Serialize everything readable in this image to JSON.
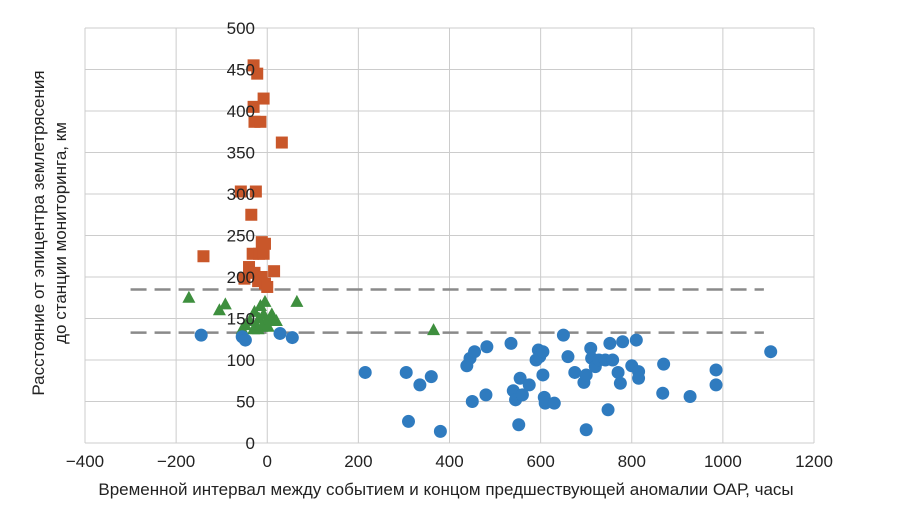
{
  "chart_data": {
    "type": "scatter",
    "xlabel": "Временной интервал между событием и концом предшествующей аномалии ОАР, часы",
    "ylabel_line1": "Расстояние от эпицентра землетрясения",
    "ylabel_line2": "до станции мониторинга, км",
    "xlim": [
      -400,
      1200
    ],
    "ylim": [
      0,
      500
    ],
    "xticks": [
      -400,
      -200,
      0,
      200,
      400,
      600,
      800,
      1000,
      1200
    ],
    "xtick_labels": [
      "−400",
      "−200",
      "0",
      "200",
      "400",
      "600",
      "800",
      "1000",
      "1200"
    ],
    "yticks": [
      0,
      50,
      100,
      150,
      200,
      250,
      300,
      350,
      400,
      450,
      500
    ],
    "ytick_labels": [
      "0",
      "50",
      "100",
      "150",
      "200",
      "250",
      "300",
      "350",
      "400",
      "450",
      "500"
    ],
    "grid": true,
    "colors": {
      "circle": "#2f7bbf",
      "square": "#c9572a",
      "triangle": "#3e8f3e",
      "line": "#8a8a8a",
      "grid": "#cccccc"
    },
    "threshold_lines": [
      {
        "y": 185,
        "x_range": [
          -300,
          1090
        ]
      },
      {
        "y": 133,
        "x_range": [
          -300,
          1090
        ]
      }
    ],
    "series": [
      {
        "marker": "square",
        "points": [
          [
            -30,
            455
          ],
          [
            -22,
            445
          ],
          [
            -8,
            415
          ],
          [
            -30,
            405
          ],
          [
            -28,
            387
          ],
          [
            -15,
            387
          ],
          [
            32,
            362
          ],
          [
            -58,
            303
          ],
          [
            -25,
            303
          ],
          [
            -35,
            275
          ],
          [
            -12,
            242
          ],
          [
            -5,
            240
          ],
          [
            -32,
            228
          ],
          [
            -18,
            228
          ],
          [
            -140,
            225
          ],
          [
            -8,
            228
          ],
          [
            -40,
            212
          ],
          [
            15,
            207
          ],
          [
            -28,
            205
          ],
          [
            -12,
            200
          ],
          [
            -50,
            198
          ],
          [
            -20,
            195
          ],
          [
            -5,
            192
          ],
          [
            0,
            188
          ]
        ]
      },
      {
        "marker": "triangle",
        "points": [
          [
            -172,
            175
          ],
          [
            -92,
            167
          ],
          [
            -105,
            160
          ],
          [
            -5,
            170
          ],
          [
            -15,
            165
          ],
          [
            65,
            170
          ],
          [
            -28,
            158
          ],
          [
            -8,
            155
          ],
          [
            10,
            155
          ],
          [
            -18,
            150
          ],
          [
            5,
            150
          ],
          [
            -38,
            147
          ],
          [
            -2,
            147
          ],
          [
            20,
            147
          ],
          [
            -48,
            142
          ],
          [
            -25,
            142
          ],
          [
            -12,
            140
          ],
          [
            2,
            140
          ],
          [
            -55,
            137
          ],
          [
            -30,
            137
          ],
          [
            -20,
            137
          ],
          [
            365,
            136
          ]
        ]
      },
      {
        "marker": "circle",
        "points": [
          [
            -145,
            130
          ],
          [
            -55,
            128
          ],
          [
            -48,
            124
          ],
          [
            28,
            132
          ],
          [
            55,
            127
          ],
          [
            215,
            85
          ],
          [
            305,
            85
          ],
          [
            360,
            80
          ],
          [
            335,
            70
          ],
          [
            310,
            26
          ],
          [
            380,
            14
          ],
          [
            438,
            93
          ],
          [
            445,
            102
          ],
          [
            455,
            110
          ],
          [
            450,
            50
          ],
          [
            480,
            58
          ],
          [
            482,
            116
          ],
          [
            535,
            120
          ],
          [
            540,
            63
          ],
          [
            545,
            52
          ],
          [
            552,
            22
          ],
          [
            555,
            78
          ],
          [
            560,
            58
          ],
          [
            575,
            70
          ],
          [
            590,
            100
          ],
          [
            595,
            112
          ],
          [
            598,
            104
          ],
          [
            605,
            110
          ],
          [
            605,
            82
          ],
          [
            608,
            55
          ],
          [
            610,
            48
          ],
          [
            630,
            48
          ],
          [
            650,
            130
          ],
          [
            660,
            104
          ],
          [
            675,
            85
          ],
          [
            695,
            73
          ],
          [
            700,
            82
          ],
          [
            700,
            16
          ],
          [
            710,
            114
          ],
          [
            712,
            102
          ],
          [
            720,
            92
          ],
          [
            728,
            100
          ],
          [
            742,
            100
          ],
          [
            748,
            40
          ],
          [
            752,
            120
          ],
          [
            758,
            100
          ],
          [
            770,
            85
          ],
          [
            775,
            72
          ],
          [
            780,
            122
          ],
          [
            800,
            93
          ],
          [
            810,
            124
          ],
          [
            815,
            86
          ],
          [
            815,
            78
          ],
          [
            870,
            95
          ],
          [
            868,
            60
          ],
          [
            928,
            56
          ],
          [
            985,
            88
          ],
          [
            985,
            70
          ],
          [
            1105,
            110
          ]
        ]
      }
    ]
  }
}
